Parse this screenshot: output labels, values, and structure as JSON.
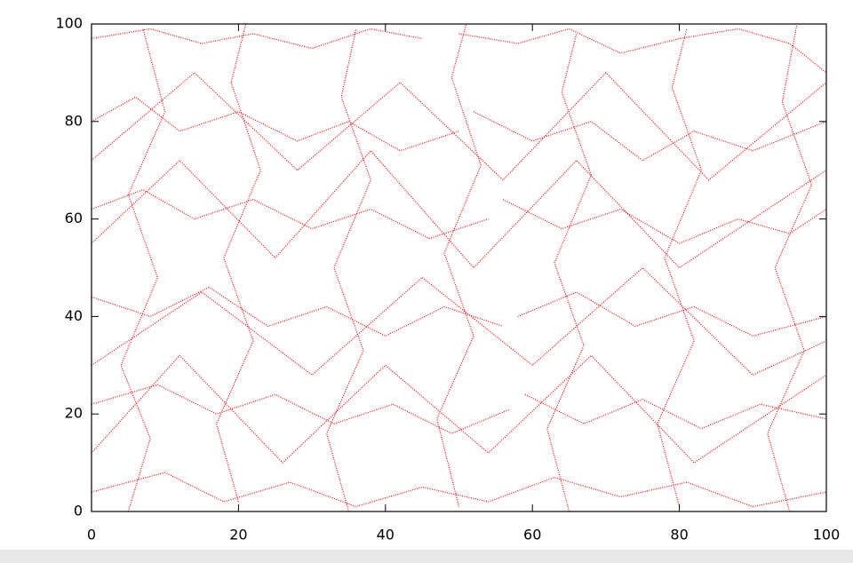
{
  "chart_data": {
    "type": "line",
    "x": [
      0,
      8,
      15,
      22,
      30,
      38,
      45,
      null,
      50,
      58,
      65,
      72,
      80,
      88,
      95,
      100,
      null,
      0,
      6,
      12,
      20,
      28,
      35,
      42,
      50,
      null,
      52,
      60,
      68,
      75,
      82,
      90,
      100,
      null,
      0,
      7,
      14,
      22,
      30,
      38,
      46,
      54,
      null,
      56,
      64,
      72,
      80,
      88,
      95,
      100,
      null,
      0,
      8,
      16,
      24,
      32,
      40,
      48,
      56,
      null,
      58,
      66,
      74,
      82,
      90,
      100,
      null,
      0,
      9,
      17,
      25,
      33,
      41,
      49,
      57,
      null,
      59,
      67,
      75,
      83,
      91,
      100,
      null,
      0,
      10,
      18,
      27,
      36,
      45,
      54,
      63,
      72,
      81,
      90,
      100,
      null,
      5,
      8,
      4,
      9,
      5,
      10,
      7,
      null,
      20,
      17,
      22,
      18,
      23,
      19,
      21,
      null,
      35,
      32,
      37,
      33,
      38,
      34,
      36,
      null,
      50,
      47,
      52,
      48,
      53,
      49,
      51,
      null,
      65,
      62,
      67,
      63,
      68,
      64,
      66,
      null,
      80,
      77,
      82,
      78,
      83,
      79,
      81,
      null,
      95,
      92,
      97,
      93,
      98,
      94,
      96,
      null,
      0,
      15,
      30,
      45,
      60,
      75,
      90,
      100,
      null,
      0,
      14,
      28,
      42,
      56,
      70,
      84,
      100,
      null,
      0,
      12,
      26,
      40,
      54,
      68,
      82,
      100,
      null,
      0,
      12,
      25,
      38,
      52,
      66,
      80,
      100
    ],
    "series": [
      {
        "color": "#ff0000",
        "values": [
          97,
          99,
          96,
          98,
          95,
          99,
          97,
          null,
          98,
          96,
          99,
          94,
          97,
          99,
          96,
          90,
          null,
          80,
          85,
          78,
          82,
          76,
          80,
          74,
          78,
          null,
          82,
          76,
          80,
          72,
          78,
          74,
          80,
          null,
          62,
          66,
          60,
          64,
          58,
          62,
          56,
          60,
          null,
          64,
          58,
          62,
          55,
          60,
          57,
          62,
          null,
          44,
          40,
          46,
          38,
          42,
          36,
          42,
          38,
          null,
          40,
          45,
          38,
          42,
          36,
          40,
          null,
          22,
          26,
          20,
          24,
          18,
          22,
          16,
          21,
          null,
          24,
          18,
          23,
          17,
          22,
          19,
          null,
          4,
          8,
          2,
          6,
          1,
          5,
          2,
          7,
          3,
          6,
          1,
          4,
          null,
          0,
          15,
          30,
          48,
          65,
          82,
          99,
          null,
          2,
          18,
          35,
          52,
          70,
          88,
          100,
          null,
          0,
          16,
          33,
          50,
          68,
          85,
          99,
          null,
          1,
          19,
          36,
          53,
          71,
          89,
          100,
          null,
          0,
          17,
          34,
          51,
          69,
          86,
          98,
          null,
          1,
          18,
          35,
          52,
          70,
          87,
          99,
          null,
          0,
          16,
          33,
          50,
          67,
          84,
          100,
          null,
          30,
          45,
          28,
          48,
          30,
          50,
          28,
          35,
          null,
          72,
          90,
          70,
          88,
          68,
          90,
          68,
          88,
          null,
          12,
          32,
          10,
          30,
          12,
          32,
          10,
          28,
          null,
          55,
          72,
          52,
          74,
          50,
          72,
          50,
          70
        ]
      }
    ],
    "xlim": [
      0,
      100
    ],
    "ylim": [
      0,
      100
    ],
    "xticks": [
      0,
      20,
      40,
      60,
      80,
      100
    ],
    "yticks": [
      0,
      20,
      40,
      60,
      80,
      100
    ]
  }
}
